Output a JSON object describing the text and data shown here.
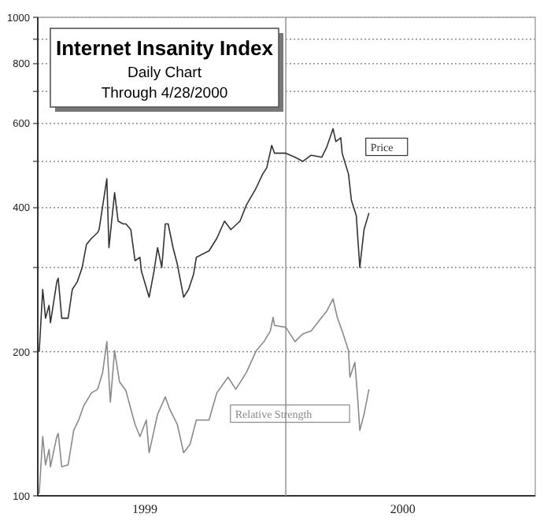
{
  "chart_data": {
    "type": "line",
    "title": "Internet Insanity Index",
    "subtitle": "Daily Chart\nThrough 4/28/2000",
    "log": true,
    "grid": "y",
    "legend": false,
    "line_style": "solid",
    "marker": "none",
    "xlim": [
      "1999-01-14",
      "2000-12-20"
    ],
    "xticks": [
      {
        "value": "1999-06-15",
        "label": "1999"
      },
      {
        "value": "2000-06-15",
        "label": "2000"
      }
    ],
    "ylim": [
      100,
      1000
    ],
    "yticks": [
      100,
      200,
      {
        "value": 300,
        "label": null
      },
      400,
      {
        "value": 500,
        "label": null
      },
      600,
      {
        "value": 700,
        "label": null
      },
      800,
      {
        "value": 900,
        "label": null
      },
      1000
    ],
    "ref_lines": [
      {
        "axis": "x",
        "value": "2000-01-01",
        "label": null,
        "color": "#999999"
      }
    ],
    "series": [
      {
        "name": "Price",
        "color": "#333333",
        "x": [
          "1999-01-16",
          "1999-01-21",
          "1999-01-25",
          "1999-01-30",
          "1999-02-01",
          "1999-02-10",
          "1999-02-12",
          "1999-02-17",
          "1999-02-26",
          "1999-03-04",
          "1999-03-11",
          "1999-03-18",
          "1999-03-24",
          "1999-03-31",
          "1999-04-09",
          "1999-04-11",
          "1999-04-22",
          "1999-04-25",
          "1999-05-03",
          "1999-05-08",
          "1999-05-15",
          "1999-05-19",
          "1999-05-26",
          "1999-06-01",
          "1999-06-08",
          "1999-06-10",
          "1999-06-21",
          "1999-06-28",
          "1999-07-03",
          "1999-07-09",
          "1999-07-14",
          "1999-07-18",
          "1999-07-25",
          "1999-07-31",
          "1999-08-09",
          "1999-08-16",
          "1999-08-23",
          "1999-08-27",
          "1999-09-14",
          "1999-09-25",
          "1999-10-06",
          "1999-10-15",
          "1999-10-28",
          "1999-11-06",
          "1999-11-20",
          "1999-11-29",
          "1999-12-05",
          "1999-12-12",
          "1999-12-16",
          "2000-01-01",
          "2000-01-14",
          "2000-01-25",
          "2000-02-06",
          "2000-02-21",
          "2000-02-28",
          "2000-03-08",
          "2000-03-12",
          "2000-03-19",
          "2000-03-21",
          "2000-03-30",
          "2000-04-03",
          "2000-04-10",
          "2000-04-15",
          "2000-04-21",
          "2000-04-28"
        ],
        "values": [
          200,
          270,
          235,
          250,
          230,
          280,
          285,
          235,
          235,
          270,
          280,
          300,
          335,
          345,
          355,
          360,
          460,
          330,
          430,
          375,
          370,
          370,
          360,
          310,
          315,
          295,
          260,
          295,
          330,
          300,
          370,
          370,
          330,
          305,
          260,
          270,
          290,
          315,
          325,
          345,
          375,
          360,
          375,
          405,
          440,
          470,
          485,
          540,
          520,
          520,
          510,
          500,
          515,
          510,
          535,
          585,
          550,
          560,
          520,
          470,
          415,
          385,
          300,
          360,
          390
        ]
      },
      {
        "name": "Relative Strength",
        "color": "#8a8a8a",
        "x": [
          "1999-01-16",
          "1999-01-21",
          "1999-01-25",
          "1999-01-30",
          "1999-02-01",
          "1999-02-10",
          "1999-02-12",
          "1999-02-17",
          "1999-02-26",
          "1999-03-06",
          "1999-03-13",
          "1999-03-20",
          "1999-03-31",
          "1999-04-09",
          "1999-04-16",
          "1999-04-22",
          "1999-04-27",
          "1999-05-03",
          "1999-05-10",
          "1999-05-19",
          "1999-05-26",
          "1999-06-01",
          "1999-06-08",
          "1999-06-17",
          "1999-06-21",
          "1999-07-03",
          "1999-07-14",
          "1999-07-20",
          "1999-07-31",
          "1999-08-09",
          "1999-08-18",
          "1999-08-27",
          "1999-09-14",
          "1999-09-25",
          "1999-10-11",
          "1999-10-22",
          "1999-11-06",
          "1999-11-20",
          "1999-12-01",
          "1999-12-10",
          "1999-12-14",
          "1999-12-16",
          "2000-01-01",
          "2000-01-14",
          "2000-01-25",
          "2000-02-06",
          "2000-02-21",
          "2000-02-28",
          "2000-03-08",
          "2000-03-14",
          "2000-03-21",
          "2000-03-30",
          "2000-04-01",
          "2000-04-08",
          "2000-04-12",
          "2000-04-15",
          "2000-04-21",
          "2000-04-28"
        ],
        "values": [
          101,
          133,
          116,
          125,
          115,
          133,
          135,
          115,
          116,
          137,
          144,
          154,
          164,
          167,
          181,
          210,
          157,
          201,
          173,
          166,
          152,
          141,
          133,
          144,
          123,
          148,
          161,
          152,
          141,
          123,
          128,
          144,
          144,
          164,
          177,
          167,
          181,
          201,
          210,
          221,
          236,
          227,
          225,
          210,
          218,
          221,
          236,
          243,
          258,
          236,
          221,
          201,
          177,
          190,
          160,
          137,
          148,
          167
        ]
      }
    ]
  }
}
